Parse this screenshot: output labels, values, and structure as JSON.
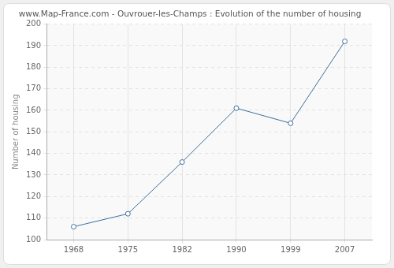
{
  "chart_data": {
    "type": "line",
    "title": "www.Map-France.com - Ouvrouer-les-Champs : Evolution of the number of housing",
    "y_label": "Number of housing",
    "categories": [
      "1968",
      "1975",
      "1982",
      "1990",
      "1999",
      "2007"
    ],
    "values": [
      106,
      112,
      136,
      161,
      154,
      192
    ],
    "color": "#3f6e9e",
    "marker": "circle",
    "ylim": [
      100,
      200
    ],
    "yticks": [
      100,
      110,
      120,
      130,
      140,
      150,
      160,
      170,
      180,
      190,
      200
    ],
    "grid": true
  }
}
